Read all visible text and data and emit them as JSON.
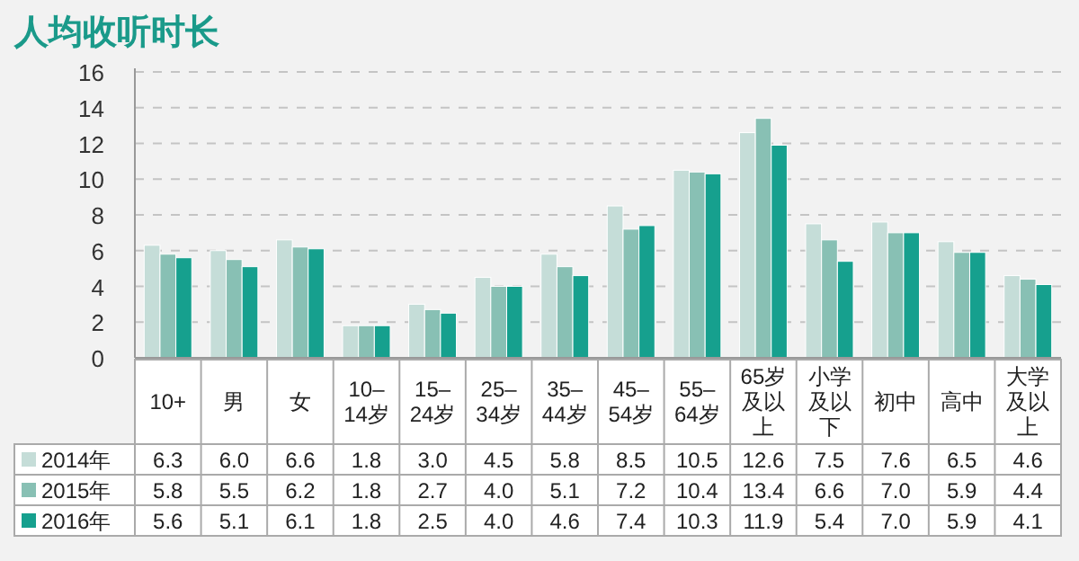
{
  "chart_data": {
    "type": "bar",
    "title": "人均收听时长",
    "categories": [
      "10+",
      "男",
      "女",
      "10–14岁",
      "15–24岁",
      "25–34岁",
      "35–44岁",
      "45–54岁",
      "55–64岁",
      "65岁及以上",
      "小学及以下",
      "初中",
      "高中",
      "大学及以上"
    ],
    "series": [
      {
        "name": "2014年",
        "color": "#c5ddd8",
        "values": [
          6.3,
          6.0,
          6.6,
          1.8,
          3.0,
          4.5,
          5.8,
          8.5,
          10.5,
          12.6,
          7.5,
          7.6,
          6.5,
          4.6
        ],
        "value_labels": [
          "6.3",
          "6.0",
          "6.6",
          "1.8",
          "3.0",
          "4.5",
          "5.8",
          "8.5",
          "10.5",
          "12.6",
          "7.5",
          "7.6",
          "6.5",
          "4.6"
        ]
      },
      {
        "name": "2015年",
        "color": "#88c0b4",
        "values": [
          5.8,
          5.5,
          6.2,
          1.8,
          2.7,
          4.0,
          5.1,
          7.2,
          10.4,
          13.4,
          6.6,
          7.0,
          5.9,
          4.4
        ],
        "value_labels": [
          "5.8",
          "5.5",
          "6.2",
          "1.8",
          "2.7",
          "4.0",
          "5.1",
          "7.2",
          "10.4",
          "13.4",
          "6.6",
          "7.0",
          "5.9",
          "4.4"
        ]
      },
      {
        "name": "2016年",
        "color": "#16a08e",
        "values": [
          5.6,
          5.1,
          6.1,
          1.8,
          2.5,
          4.0,
          4.6,
          7.4,
          10.3,
          11.9,
          5.4,
          7.0,
          5.9,
          4.1
        ],
        "value_labels": [
          "5.6",
          "5.1",
          "6.1",
          "1.8",
          "2.5",
          "4.0",
          "4.6",
          "7.4",
          "10.3",
          "11.9",
          "5.4",
          "7.0",
          "5.9",
          "4.1"
        ]
      }
    ],
    "ylim": [
      0,
      16
    ],
    "yticks": [
      0,
      2,
      4,
      6,
      8,
      10,
      12,
      14,
      16
    ],
    "grid": "y",
    "legend": "bottom left"
  }
}
